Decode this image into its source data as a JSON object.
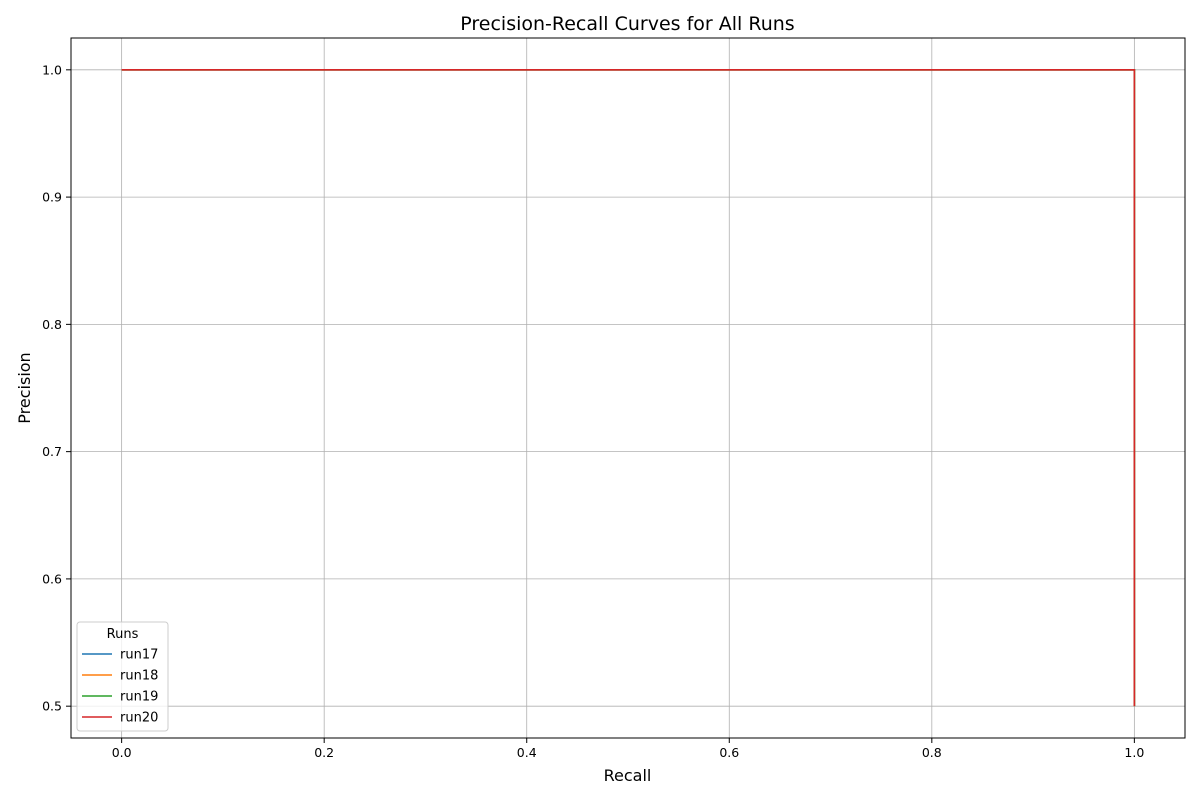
{
  "chart_data": {
    "type": "line",
    "title": "Precision-Recall Curves for All Runs",
    "xlabel": "Recall",
    "ylabel": "Precision",
    "xlim": [
      -0.05,
      1.05
    ],
    "ylim": [
      0.475,
      1.025
    ],
    "xticks": [
      0.0,
      0.2,
      0.4,
      0.6,
      0.8,
      1.0
    ],
    "xtick_labels": [
      "0.0",
      "0.2",
      "0.4",
      "0.6",
      "0.8",
      "1.0"
    ],
    "yticks": [
      0.5,
      0.6,
      0.7,
      0.8,
      0.9,
      1.0
    ],
    "ytick_labels": [
      "0.5",
      "0.6",
      "0.7",
      "0.8",
      "0.9",
      "1.0"
    ],
    "grid": true,
    "legend": {
      "title": "Runs",
      "placement": "lower-left"
    },
    "series": [
      {
        "name": "run17",
        "color": "#1f77b4",
        "x": [
          0.0,
          1.0,
          1.0
        ],
        "y": [
          1.0,
          1.0,
          0.5
        ]
      },
      {
        "name": "run18",
        "color": "#ff7f0e",
        "x": [
          0.0,
          1.0,
          1.0
        ],
        "y": [
          1.0,
          1.0,
          0.5
        ]
      },
      {
        "name": "run19",
        "color": "#2ca02c",
        "x": [
          0.0,
          1.0,
          1.0
        ],
        "y": [
          1.0,
          1.0,
          0.5
        ]
      },
      {
        "name": "run20",
        "color": "#d62728",
        "x": [
          0.0,
          1.0,
          1.0
        ],
        "y": [
          1.0,
          1.0,
          0.5
        ]
      }
    ]
  }
}
